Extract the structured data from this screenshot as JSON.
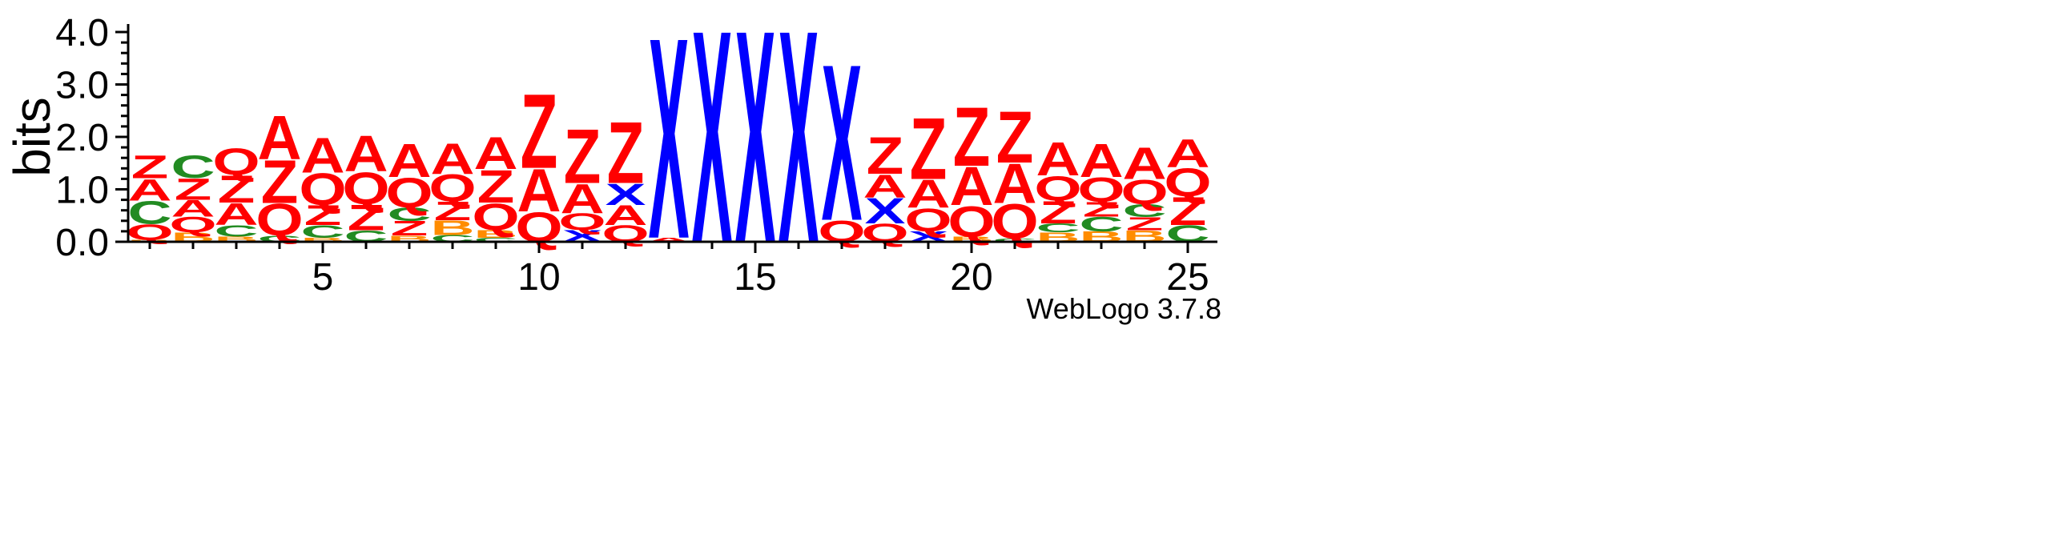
{
  "chart_data": {
    "type": "sequence-logo",
    "ylabel": "bits",
    "ylim": [
      0,
      4.0
    ],
    "y_ticks": [
      {
        "value": 0.0,
        "label": "0.0"
      },
      {
        "value": 1.0,
        "label": "1.0"
      },
      {
        "value": 2.0,
        "label": "2.0"
      },
      {
        "value": 3.0,
        "label": "3.0"
      },
      {
        "value": 4.0,
        "label": "4.0"
      }
    ],
    "x_ticks": [
      {
        "value": 5,
        "label": "5"
      },
      {
        "value": 10,
        "label": "10"
      },
      {
        "value": 15,
        "label": "15"
      },
      {
        "value": 20,
        "label": "20"
      },
      {
        "value": 25,
        "label": "25"
      }
    ],
    "xlim": [
      0.5,
      25.5
    ],
    "footer": "WebLogo 3.7.8",
    "colors": {
      "A": "#ff0000",
      "Q": "#ff0000",
      "Z": "#ff0000",
      "C": "#228b22",
      "B": "#ff8c00",
      "X": "#0000ff"
    },
    "positions": [
      {
        "pos": 1,
        "stack": [
          {
            "letter": "B",
            "height": 0.04
          },
          {
            "letter": "Q",
            "height": 0.3
          },
          {
            "letter": "C",
            "height": 0.45
          },
          {
            "letter": "A",
            "height": 0.42
          },
          {
            "letter": "Z",
            "height": 0.45
          }
        ]
      },
      {
        "pos": 2,
        "stack": [
          {
            "letter": "B",
            "height": 0.18
          },
          {
            "letter": "Q",
            "height": 0.3
          },
          {
            "letter": "A",
            "height": 0.32
          },
          {
            "letter": "Z",
            "height": 0.42
          },
          {
            "letter": "C",
            "height": 0.44
          }
        ]
      },
      {
        "pos": 3,
        "stack": [
          {
            "letter": "B",
            "height": 0.1
          },
          {
            "letter": "C",
            "height": 0.22
          },
          {
            "letter": "A",
            "height": 0.43
          },
          {
            "letter": "Z",
            "height": 0.53
          },
          {
            "letter": "Q",
            "height": 0.52
          }
        ]
      },
      {
        "pos": 4,
        "stack": [
          {
            "letter": "C",
            "height": 0.12
          },
          {
            "letter": "Q",
            "height": 0.62
          },
          {
            "letter": "Z",
            "height": 0.84
          },
          {
            "letter": "A",
            "height": 0.85
          }
        ]
      },
      {
        "pos": 5,
        "stack": [
          {
            "letter": "B",
            "height": 0.08
          },
          {
            "letter": "C",
            "height": 0.24
          },
          {
            "letter": "Z",
            "height": 0.38
          },
          {
            "letter": "Q",
            "height": 0.62
          },
          {
            "letter": "A",
            "height": 0.68
          }
        ]
      },
      {
        "pos": 6,
        "stack": [
          {
            "letter": "C",
            "height": 0.22
          },
          {
            "letter": "Z",
            "height": 0.5
          },
          {
            "letter": "Q",
            "height": 0.62
          },
          {
            "letter": "A",
            "height": 0.7
          }
        ]
      },
      {
        "pos": 7,
        "stack": [
          {
            "letter": "B",
            "height": 0.12
          },
          {
            "letter": "Z",
            "height": 0.28
          },
          {
            "letter": "C",
            "height": 0.26
          },
          {
            "letter": "Q",
            "height": 0.58
          },
          {
            "letter": "A",
            "height": 0.65
          }
        ]
      },
      {
        "pos": 8,
        "stack": [
          {
            "letter": "C",
            "height": 0.13
          },
          {
            "letter": "B",
            "height": 0.28
          },
          {
            "letter": "Z",
            "height": 0.36
          },
          {
            "letter": "Q",
            "height": 0.53
          },
          {
            "letter": "A",
            "height": 0.6
          }
        ]
      },
      {
        "pos": 9,
        "stack": [
          {
            "letter": "C",
            "height": 0.08
          },
          {
            "letter": "B",
            "height": 0.15
          },
          {
            "letter": "Q",
            "height": 0.52
          },
          {
            "letter": "Z",
            "height": 0.64
          },
          {
            "letter": "A",
            "height": 0.63
          }
        ]
      },
      {
        "pos": 10,
        "stack": [
          {
            "letter": "Q",
            "height": 0.58
          },
          {
            "letter": "A",
            "height": 0.83
          },
          {
            "letter": "Z",
            "height": 1.45
          }
        ]
      },
      {
        "pos": 11,
        "stack": [
          {
            "letter": "X",
            "height": 0.23
          },
          {
            "letter": "Q",
            "height": 0.32
          },
          {
            "letter": "A",
            "height": 0.57
          },
          {
            "letter": "Z",
            "height": 1.05
          }
        ]
      },
      {
        "pos": 12,
        "stack": [
          {
            "letter": "Q",
            "height": 0.32
          },
          {
            "letter": "A",
            "height": 0.38
          },
          {
            "letter": "X",
            "height": 0.42
          },
          {
            "letter": "Z",
            "height": 1.2
          }
        ]
      },
      {
        "pos": 13,
        "stack": [
          {
            "letter": "A",
            "height": 0.08
          },
          {
            "letter": "X",
            "height": 3.92
          }
        ]
      },
      {
        "pos": 14,
        "stack": [
          {
            "letter": "X",
            "height": 4.15
          }
        ]
      },
      {
        "pos": 15,
        "stack": [
          {
            "letter": "X",
            "height": 4.15
          }
        ]
      },
      {
        "pos": 16,
        "stack": [
          {
            "letter": "X",
            "height": 4.15
          }
        ]
      },
      {
        "pos": 17,
        "stack": [
          {
            "letter": "Q",
            "height": 0.42
          },
          {
            "letter": "X",
            "height": 3.05
          }
        ]
      },
      {
        "pos": 18,
        "stack": [
          {
            "letter": "Q",
            "height": 0.35
          },
          {
            "letter": "X",
            "height": 0.5
          },
          {
            "letter": "A",
            "height": 0.45
          },
          {
            "letter": "Z",
            "height": 0.72
          }
        ]
      },
      {
        "pos": 19,
        "stack": [
          {
            "letter": "X",
            "height": 0.2
          },
          {
            "letter": "Q",
            "height": 0.45
          },
          {
            "letter": "A",
            "height": 0.55
          },
          {
            "letter": "Z",
            "height": 1.2
          }
        ]
      },
      {
        "pos": 20,
        "stack": [
          {
            "letter": "B",
            "height": 0.1
          },
          {
            "letter": "Q",
            "height": 0.6
          },
          {
            "letter": "A",
            "height": 0.75
          },
          {
            "letter": "Z",
            "height": 1.15
          }
        ]
      },
      {
        "pos": 21,
        "stack": [
          {
            "letter": "C",
            "height": 0.06
          },
          {
            "letter": "Q",
            "height": 0.68
          },
          {
            "letter": "A",
            "height": 0.77
          },
          {
            "letter": "Z",
            "height": 1.0
          }
        ]
      },
      {
        "pos": 22,
        "stack": [
          {
            "letter": "B",
            "height": 0.18
          },
          {
            "letter": "C",
            "height": 0.17
          },
          {
            "letter": "Z",
            "height": 0.44
          },
          {
            "letter": "Q",
            "height": 0.48
          },
          {
            "letter": "A",
            "height": 0.65
          }
        ]
      },
      {
        "pos": 23,
        "stack": [
          {
            "letter": "B",
            "height": 0.2
          },
          {
            "letter": "C",
            "height": 0.28
          },
          {
            "letter": "Z",
            "height": 0.28
          },
          {
            "letter": "Q",
            "height": 0.48
          },
          {
            "letter": "A",
            "height": 0.65
          }
        ]
      },
      {
        "pos": 24,
        "stack": [
          {
            "letter": "B",
            "height": 0.22
          },
          {
            "letter": "Z",
            "height": 0.25
          },
          {
            "letter": "C",
            "height": 0.25
          },
          {
            "letter": "Q",
            "height": 0.48
          },
          {
            "letter": "A",
            "height": 0.62
          }
        ]
      },
      {
        "pos": 25,
        "stack": [
          {
            "letter": "C",
            "height": 0.32
          },
          {
            "letter": "Z",
            "height": 0.55
          },
          {
            "letter": "Q",
            "height": 0.55
          },
          {
            "letter": "A",
            "height": 0.55
          }
        ]
      }
    ]
  }
}
